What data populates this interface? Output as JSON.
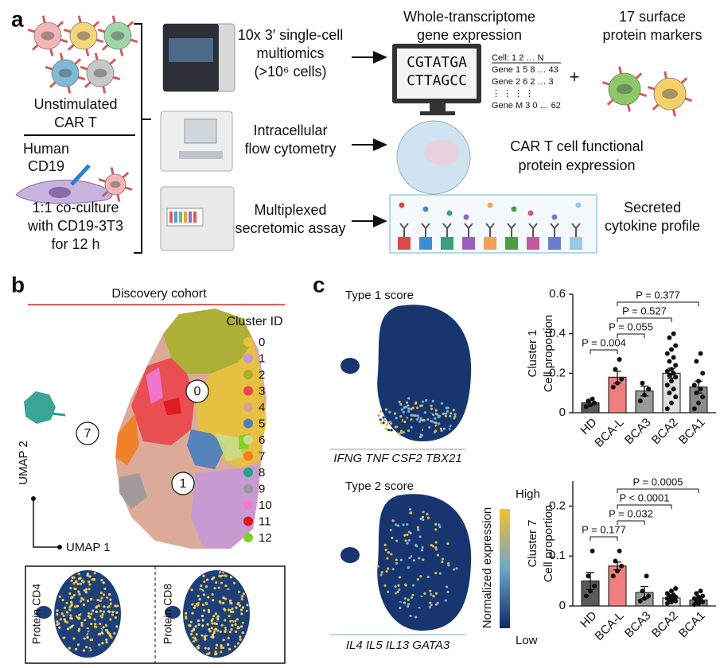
{
  "panel_a": {
    "label": "a",
    "unstimulated": [
      "Unstimulated",
      "CAR T"
    ],
    "human_cd19": [
      "Human",
      "CD19"
    ],
    "coculture": [
      "1:1 co-culture",
      "with CD19-3T3",
      "for 12 h"
    ],
    "methods": [
      [
        "10x 3′ single-cell",
        "multiomics",
        "(>10⁶ cells)"
      ],
      [
        "Intracellular",
        "flow cytometry"
      ],
      [
        "Multiplexed",
        "secretomic assay"
      ]
    ],
    "transcriptome_title": [
      "Whole-transcriptome",
      "gene expression"
    ],
    "surface_title": [
      "17 surface",
      "protein markers"
    ],
    "sequence": [
      "CGTATGA",
      "CTTAGCC"
    ],
    "matrix": [
      "Cell: 1 2 … N",
      "Gene 1   5 8 … 43",
      "Gene 2   6 2 …  3",
      "⋮       ⋮ ⋮      ⋮",
      "Gene M   3 0 … 62"
    ],
    "plus": "+",
    "functional": [
      "CAR T cell functional",
      "protein expression"
    ],
    "secreted": [
      "Secreted",
      "cytokine profile"
    ]
  },
  "panel_b": {
    "label": "b",
    "title": "Discovery cohort",
    "legend_title": "Cluster ID",
    "clusters": [
      {
        "name": "0",
        "color": "#e8c23a"
      },
      {
        "name": "1",
        "color": "#c49ad6"
      },
      {
        "name": "2",
        "color": "#a8b02e"
      },
      {
        "name": "3",
        "color": "#e8474c"
      },
      {
        "name": "4",
        "color": "#d9a38f"
      },
      {
        "name": "5",
        "color": "#4a7fc1"
      },
      {
        "name": "6",
        "color": "#c8dc8a"
      },
      {
        "name": "7",
        "color": "#f07f1f"
      },
      {
        "name": "8",
        "color": "#2a9d8f"
      },
      {
        "name": "9",
        "color": "#9a9a9a"
      },
      {
        "name": "10",
        "color": "#f07ad8"
      },
      {
        "name": "11",
        "color": "#e0171e"
      },
      {
        "name": "12",
        "color": "#7ed321"
      }
    ],
    "cluster_labels": [
      "0",
      "7",
      "1"
    ],
    "axes": [
      "UMAP 2",
      "UMAP 1"
    ],
    "proteins": [
      "Protein CD4",
      "Protein CD8"
    ]
  },
  "panel_c": {
    "label": "c",
    "scores": [
      {
        "title": "Type 1 score",
        "genes": "IFNG TNF CSF2 TBX21"
      },
      {
        "title": "Type 2 score",
        "genes": "IL4 IL5 IL13 GATA3"
      }
    ],
    "colorbar": {
      "title": "Normalized expression",
      "high": "High",
      "low": "Low",
      "colors": [
        "#f2c230",
        "#6fa6c9",
        "#0d2a6b"
      ]
    }
  },
  "chart_data": [
    {
      "type": "bar",
      "ylabel": [
        "Cluster 1",
        "Cell proportion"
      ],
      "categories": [
        "HD",
        "BCA-L",
        "BCA3",
        "BCA2",
        "BCA1"
      ],
      "values": [
        0.05,
        0.18,
        0.11,
        0.2,
        0.13
      ],
      "errors": [
        0.01,
        0.03,
        0.025,
        0.025,
        0.03
      ],
      "points": [
        [
          0.03,
          0.04,
          0.05,
          0.06,
          0.07
        ],
        [
          0.13,
          0.15,
          0.17,
          0.22,
          0.27
        ],
        [
          0.06,
          0.09,
          0.12,
          0.15
        ],
        [
          0.02,
          0.05,
          0.08,
          0.1,
          0.12,
          0.14,
          0.16,
          0.18,
          0.19,
          0.2,
          0.21,
          0.22,
          0.24,
          0.26,
          0.28,
          0.3,
          0.32,
          0.34,
          0.38,
          0.4
        ],
        [
          0.02,
          0.05,
          0.08,
          0.1,
          0.12,
          0.14,
          0.16,
          0.2,
          0.26,
          0.3
        ]
      ],
      "colors": [
        "#5a5a5a",
        "#f08080",
        "#9a9a9a",
        "#e0e0e0",
        "#8a8a8a"
      ],
      "ylim": [
        0,
        0.6
      ],
      "yticks": [
        0,
        0.2,
        0.4,
        0.6
      ],
      "annotations": [
        "P = 0.004",
        "P = 0.055",
        "P = 0.527",
        "P = 0.377"
      ]
    },
    {
      "type": "bar",
      "ylabel": [
        "Cluster 7",
        "Cell proportion"
      ],
      "categories": [
        "HD",
        "BCA-L",
        "BCA3",
        "BCA2",
        "BCA1"
      ],
      "values": [
        0.05,
        0.08,
        0.027,
        0.016,
        0.012
      ],
      "errors": [
        0.017,
        0.008,
        0.012,
        0.003,
        0.004
      ],
      "points": [
        [
          0.02,
          0.03,
          0.04,
          0.06,
          0.11
        ],
        [
          0.06,
          0.07,
          0.08,
          0.09,
          0.11
        ],
        [
          0.01,
          0.015,
          0.02,
          0.03,
          0.06
        ],
        [
          0.005,
          0.008,
          0.01,
          0.012,
          0.014,
          0.015,
          0.016,
          0.018,
          0.02,
          0.022,
          0.025,
          0.03,
          0.035
        ],
        [
          0.003,
          0.005,
          0.008,
          0.01,
          0.012,
          0.015,
          0.018,
          0.02,
          0.025,
          0.03
        ]
      ],
      "colors": [
        "#5a5a5a",
        "#f08080",
        "#9a9a9a",
        "#e0e0e0",
        "#8a8a8a"
      ],
      "ylim": [
        0,
        0.25
      ],
      "yticks": [
        0,
        0.1,
        0.2
      ],
      "annotations": [
        "P = 0.177",
        "P = 0.032",
        "P < 0.0001",
        "P = 0.0005"
      ]
    }
  ]
}
